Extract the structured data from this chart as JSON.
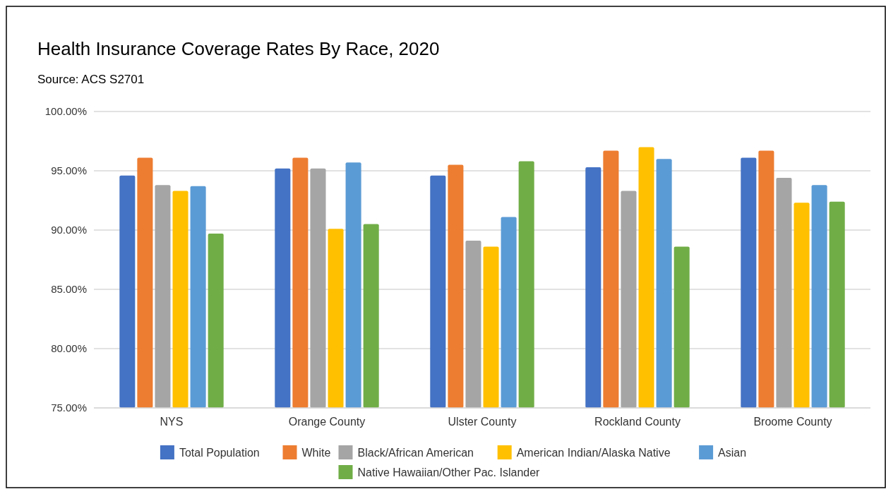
{
  "chart_data": {
    "type": "bar",
    "title": "Health Insurance Coverage Rates By Race, 2020",
    "subtitle": "Source: ACS S2701",
    "categories": [
      "NYS",
      "Orange County",
      "Ulster County",
      "Rockland County",
      "Broome County"
    ],
    "series": [
      {
        "name": "Total Population",
        "color": "#4472c4",
        "values": [
          94.6,
          95.2,
          94.6,
          95.3,
          96.1
        ]
      },
      {
        "name": "White",
        "color": "#ed7d31",
        "values": [
          96.1,
          96.1,
          95.5,
          96.7,
          96.7
        ]
      },
      {
        "name": "Black/African American",
        "color": "#a5a5a5",
        "values": [
          93.8,
          95.2,
          89.1,
          93.3,
          94.4
        ]
      },
      {
        "name": "American Indian/Alaska Native",
        "color": "#ffc000",
        "values": [
          93.3,
          90.1,
          88.6,
          97.0,
          92.3
        ]
      },
      {
        "name": "Asian",
        "color": "#5b9bd5",
        "values": [
          93.7,
          95.7,
          91.1,
          96.0,
          93.8
        ]
      },
      {
        "name": "Native Hawaiian/Other Pac. Islander",
        "color": "#70ad47",
        "values": [
          89.7,
          90.5,
          95.8,
          88.6,
          92.4
        ]
      }
    ],
    "ylim": [
      75,
      100
    ],
    "yticks": [
      {
        "value": 75,
        "label": "75.00%"
      },
      {
        "value": 80,
        "label": "80.00%"
      },
      {
        "value": 85,
        "label": "85.00%"
      },
      {
        "value": 90,
        "label": "90.00%"
      },
      {
        "value": 95,
        "label": "95.00%"
      },
      {
        "value": 100,
        "label": "100.00%"
      }
    ],
    "grid": "y",
    "legend": "bottom"
  }
}
